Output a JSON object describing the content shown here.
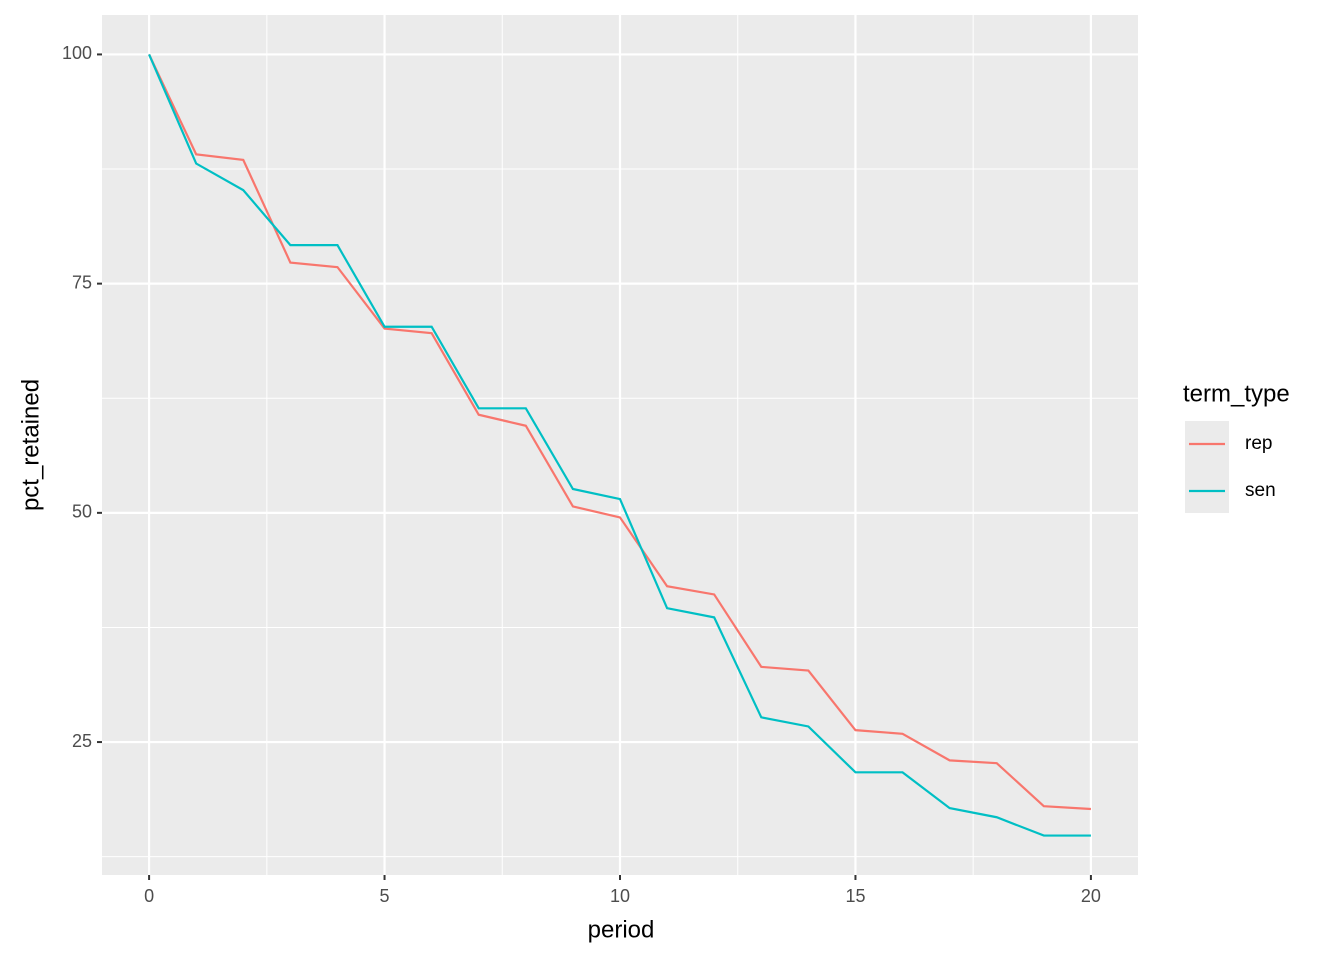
{
  "chart_data": {
    "type": "line",
    "x_label": "period",
    "y_label": "pct_retained",
    "x": [
      0,
      1,
      2,
      3,
      4,
      5,
      6,
      7,
      8,
      9,
      10,
      11,
      12,
      13,
      14,
      15,
      16,
      17,
      18,
      19,
      20
    ],
    "series": [
      {
        "name": "rep",
        "color": "#F8766D",
        "values": [
          100,
          89.1,
          88.5,
          77.3,
          76.8,
          70.1,
          69.6,
          60.7,
          59.5,
          50.7,
          49.5,
          42.0,
          41.1,
          33.2,
          32.8,
          26.3,
          25.9,
          23.0,
          22.7,
          18.0,
          17.7
        ]
      },
      {
        "name": "sen",
        "color": "#00BFC4",
        "values": [
          100,
          88.1,
          85.2,
          79.2,
          79.2,
          70.3,
          70.3,
          61.4,
          61.4,
          52.6,
          51.5,
          39.6,
          38.6,
          27.7,
          26.7,
          21.7,
          21.7,
          17.8,
          16.8,
          14.8,
          14.8
        ]
      }
    ],
    "legend_title": "term_type",
    "xlim": [
      -1,
      21
    ],
    "ylim": [
      10.5,
      104.3
    ],
    "xticks": [
      0,
      5,
      10,
      15,
      20
    ],
    "yticks": [
      25,
      50,
      75,
      100
    ],
    "xminor": [
      2.5,
      7.5,
      12.5,
      17.5
    ],
    "yminor": [
      12.5,
      37.5,
      62.5,
      87.5
    ],
    "grid": true,
    "legend": "right"
  }
}
